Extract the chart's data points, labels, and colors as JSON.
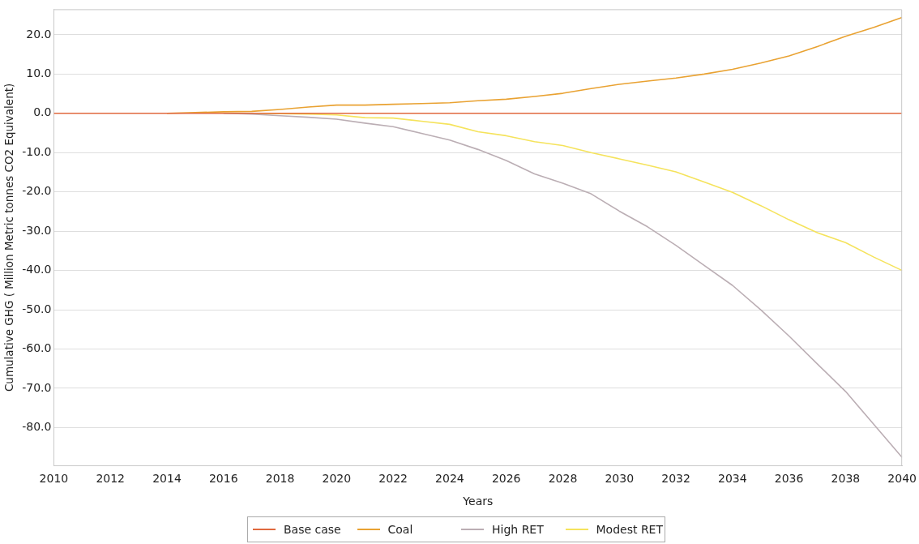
{
  "chart_data": {
    "type": "line",
    "xlabel": "Years",
    "ylabel": "Cumulative GHG ( Million Metric tonnes CO2 Equivalent)",
    "x": [
      2010,
      2011,
      2012,
      2013,
      2014,
      2015,
      2016,
      2017,
      2018,
      2019,
      2020,
      2021,
      2022,
      2023,
      2024,
      2025,
      2026,
      2027,
      2028,
      2029,
      2030,
      2031,
      2032,
      2033,
      2034,
      2035,
      2036,
      2037,
      2038,
      2039,
      2040
    ],
    "series": [
      {
        "name": "Base case",
        "color": "#e0693e",
        "values": [
          0,
          0,
          0,
          0,
          0,
          0,
          0,
          0,
          0,
          0,
          0,
          0,
          0,
          0,
          0,
          0,
          0,
          0,
          0,
          0,
          0,
          0,
          0,
          0,
          0,
          0,
          0,
          0,
          0,
          0,
          0
        ]
      },
      {
        "name": "Coal",
        "color": "#e9a232",
        "values": [
          null,
          null,
          null,
          null,
          0,
          0.2,
          0.4,
          0.5,
          1.0,
          1.6,
          2.1,
          2.1,
          2.3,
          2.5,
          2.7,
          3.2,
          3.6,
          4.3,
          5.1,
          6.3,
          7.4,
          8.2,
          9.0,
          10.0,
          11.2,
          12.8,
          14.6,
          17.0,
          19.6,
          21.9,
          24.4
        ]
      },
      {
        "name": "High RET",
        "color": "#bbaeb4",
        "values": [
          null,
          null,
          null,
          null,
          null,
          null,
          0,
          -0.2,
          -0.6,
          -1.0,
          -1.5,
          -2.5,
          -3.4,
          -5.1,
          -6.8,
          -9.2,
          -12.0,
          -15.4,
          -17.8,
          -20.5,
          -24.9,
          -28.9,
          -33.6,
          -38.7,
          -43.8,
          -50.0,
          -56.7,
          -63.8,
          -70.8,
          -79.2,
          -87.6
        ]
      },
      {
        "name": "Modest RET",
        "color": "#f5e35c",
        "values": [
          null,
          null,
          null,
          null,
          null,
          null,
          null,
          0,
          -0.1,
          -0.2,
          -0.4,
          -1.1,
          -1.2,
          -2.0,
          -2.8,
          -4.7,
          -5.7,
          -7.2,
          -8.2,
          -10.0,
          -11.6,
          -13.2,
          -14.9,
          -17.5,
          -20.1,
          -23.5,
          -27.1,
          -30.4,
          -32.9,
          -36.6,
          -40.0
        ]
      }
    ],
    "xlim": [
      2010,
      2040
    ],
    "xticks": [
      2010,
      2012,
      2014,
      2016,
      2018,
      2020,
      2022,
      2024,
      2026,
      2028,
      2030,
      2032,
      2034,
      2036,
      2038,
      2040
    ],
    "ylim": [
      -89.7,
      26.5
    ],
    "yticks": [
      {
        "value": -80,
        "label": "-80.0"
      },
      {
        "value": -70,
        "label": "-70.0"
      },
      {
        "value": -60,
        "label": "-60.0"
      },
      {
        "value": -50,
        "label": "-50.0"
      },
      {
        "value": -40,
        "label": "-40.0"
      },
      {
        "value": -30,
        "label": "-30.0"
      },
      {
        "value": -20,
        "label": "-20.0"
      },
      {
        "value": -10,
        "label": "-10.0"
      },
      {
        "value": 0,
        "label": "0.0"
      },
      {
        "value": 10,
        "label": "10.0"
      },
      {
        "value": 20,
        "label": "20.0"
      }
    ],
    "grid": "y",
    "legend": "bottom",
    "marker": "none",
    "line_style": "solid"
  }
}
